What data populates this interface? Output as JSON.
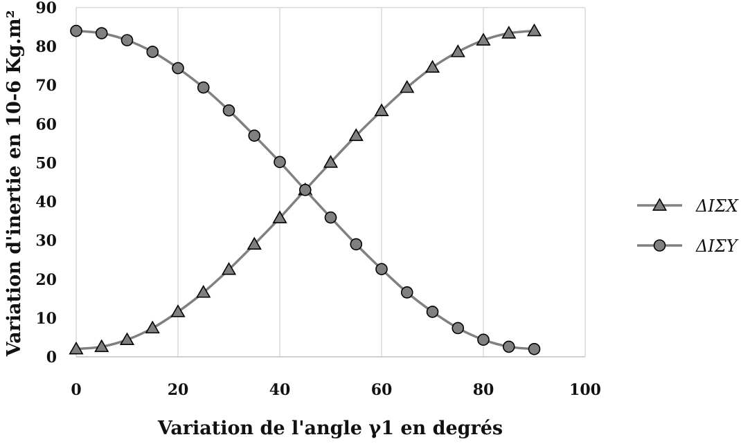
{
  "chart_data": {
    "type": "line",
    "title": "",
    "xlabel": "Variation de l'angle γ1 en degrés",
    "ylabel": "Variation d'inertie en 10-6 Kg.m²",
    "xlim": [
      0,
      100
    ],
    "ylim": [
      0,
      90
    ],
    "x_ticks": [
      "0",
      "20",
      "40",
      "60",
      "80",
      "100"
    ],
    "y_ticks": [
      "0",
      "10",
      "20",
      "30",
      "40",
      "50",
      "60",
      "70",
      "80",
      "90"
    ],
    "grid": "vertical",
    "legend_position": "right",
    "x": [
      0,
      5,
      10,
      15,
      20,
      25,
      30,
      35,
      40,
      45,
      50,
      55,
      60,
      65,
      70,
      75,
      80,
      85,
      90
    ],
    "series": [
      {
        "name": "ΔIΣX",
        "marker": "triangle",
        "color": "#808080",
        "values": [
          2,
          2.6,
          4.4,
          7.4,
          11.6,
          16.6,
          22.5,
          29,
          35.8,
          43,
          50.1,
          57,
          63.4,
          69.4,
          74.6,
          78.6,
          81.6,
          83.4,
          84
        ]
      },
      {
        "name": "ΔIΣY",
        "marker": "circle",
        "color": "#808080",
        "values": [
          84,
          83.4,
          81.6,
          78.6,
          74.4,
          69.4,
          63.5,
          57,
          50.2,
          43,
          35.9,
          29,
          22.6,
          16.6,
          11.6,
          7.4,
          4.4,
          2.6,
          2
        ]
      }
    ]
  }
}
